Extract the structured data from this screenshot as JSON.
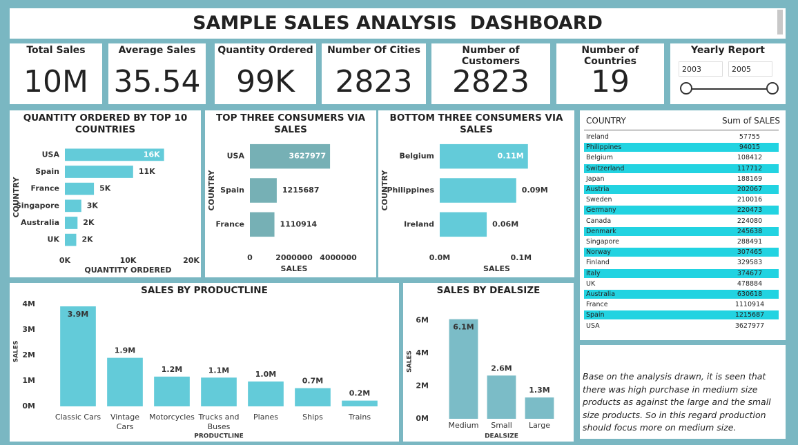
{
  "header": {
    "title": "SAMPLE SALES ANALYSIS  DASHBOARD"
  },
  "cards": [
    {
      "label": "Total Sales",
      "value": "10M"
    },
    {
      "label": "Average Sales",
      "value": "35.54"
    },
    {
      "label": "Quantity Ordered",
      "value": "99K"
    },
    {
      "label": "Number Of Cities",
      "value": "2823"
    },
    {
      "label": "Number of Customers",
      "value": "2823"
    },
    {
      "label": "Number of Countries",
      "value": "19"
    }
  ],
  "slicer": {
    "title": "Yearly Report",
    "from": 2003,
    "to": 2005
  },
  "chart_data": [
    {
      "type": "barh",
      "title": "QUANTITY ORDERED BY TOP 10 COUNTRIES",
      "categories": [
        "USA",
        "Spain",
        "France",
        "Singapore",
        "Australia",
        "UK"
      ],
      "values": [
        15700,
        10800,
        4600,
        2600,
        2000,
        1800
      ],
      "value_labels": [
        "16K",
        "11K",
        "5K",
        "3K",
        "2K",
        "2K"
      ],
      "color": "#63cbd9",
      "xlim": [
        0,
        20000
      ],
      "xticks": [
        {
          "value": 0,
          "label": "0K"
        },
        {
          "value": 10000,
          "label": "10K"
        },
        {
          "value": 20000,
          "label": "20K"
        }
      ],
      "xlabel": "QUANTITY ORDERED",
      "ylabel": "COUNTRY"
    },
    {
      "type": "barh",
      "title": "TOP THREE CONSUMERS VIA SALES",
      "categories": [
        "USA",
        "Spain",
        "France"
      ],
      "values": [
        3627977,
        1215687,
        1110914
      ],
      "color": "#76b0b5",
      "xlim": [
        0,
        4000000
      ],
      "xticks": [
        0,
        2000000,
        4000000
      ],
      "xlabel": "SALES",
      "ylabel": "COUNTRY"
    },
    {
      "type": "barh",
      "title": "BOTTOM THREE CONSUMERS VIA SALES",
      "categories": [
        "Belgium",
        "Philippines",
        "Ireland"
      ],
      "values": [
        108412,
        94015,
        57755
      ],
      "value_labels": [
        "0.11M",
        "0.09M",
        "0.06M"
      ],
      "color": "#63cbd9",
      "xlim": [
        0,
        140000
      ],
      "xticks": [
        {
          "value": 0,
          "label": "0.0M"
        },
        {
          "value": 100000,
          "label": "0.1M"
        }
      ],
      "xlabel": "SALES",
      "ylabel": "COUNTRY"
    },
    {
      "type": "bar",
      "title": "SALES BY PRODUCTLINE",
      "categories": [
        "Classic Cars",
        "Vintage Cars",
        "Motorcycles",
        "Trucks and Buses",
        "Planes",
        "Ships",
        "Trains"
      ],
      "values": [
        3919616,
        1903151,
        1166388,
        1127790,
        975004,
        714437,
        226243
      ],
      "value_labels": [
        "3.9M",
        "1.9M",
        "1.2M",
        "1.1M",
        "1.0M",
        "0.7M",
        "0.2M"
      ],
      "color": "#63cbd9",
      "ylim": [
        0,
        4300000
      ],
      "yticks": [
        {
          "value": 0,
          "label": "0M"
        },
        {
          "value": 1000000,
          "label": "1M"
        },
        {
          "value": 2000000,
          "label": "2M"
        },
        {
          "value": 3000000,
          "label": "3M"
        },
        {
          "value": 4000000,
          "label": "4M"
        }
      ],
      "xlabel": "PRODUCTLINE",
      "ylabel": "SALES"
    },
    {
      "type": "bar",
      "title": "SALES BY DEALSIZE",
      "categories": [
        "Medium",
        "Small",
        "Large"
      ],
      "values": [
        6087432,
        2643077,
        1302119
      ],
      "value_labels": [
        "6.1M",
        "2.6M",
        "1.3M"
      ],
      "color": "#7bbcc7",
      "ylim": [
        0,
        7000000
      ],
      "yticks": [
        {
          "value": 0,
          "label": "0M"
        },
        {
          "value": 2000000,
          "label": "2M"
        },
        {
          "value": 4000000,
          "label": "4M"
        },
        {
          "value": 6000000,
          "label": "6M"
        }
      ],
      "xlabel": "DEALSIZE",
      "ylabel": "SALES"
    }
  ],
  "table": {
    "columns": [
      "COUNTRY",
      "Sum of SALES"
    ],
    "rows": [
      [
        "Ireland",
        57755
      ],
      [
        "Philippines",
        94015
      ],
      [
        "Belgium",
        108412
      ],
      [
        "Switzerland",
        117712
      ],
      [
        "Japan",
        188169
      ],
      [
        "Austria",
        202067
      ],
      [
        "Sweden",
        210016
      ],
      [
        "Germany",
        220473
      ],
      [
        "Canada",
        224080
      ],
      [
        "Denmark",
        245638
      ],
      [
        "Singapore",
        288491
      ],
      [
        "Norway",
        307465
      ],
      [
        "Finland",
        329583
      ],
      [
        "Italy",
        374677
      ],
      [
        "UK",
        478884
      ],
      [
        "Australia",
        630618
      ],
      [
        "France",
        1110914
      ],
      [
        "Spain",
        1215687
      ],
      [
        "USA",
        3627977
      ]
    ]
  },
  "note": "Base on the analysis drawn, it is seen that there was high purchase in medium size products as against the large and the small size products. So in this regard production should focus more on medium size."
}
